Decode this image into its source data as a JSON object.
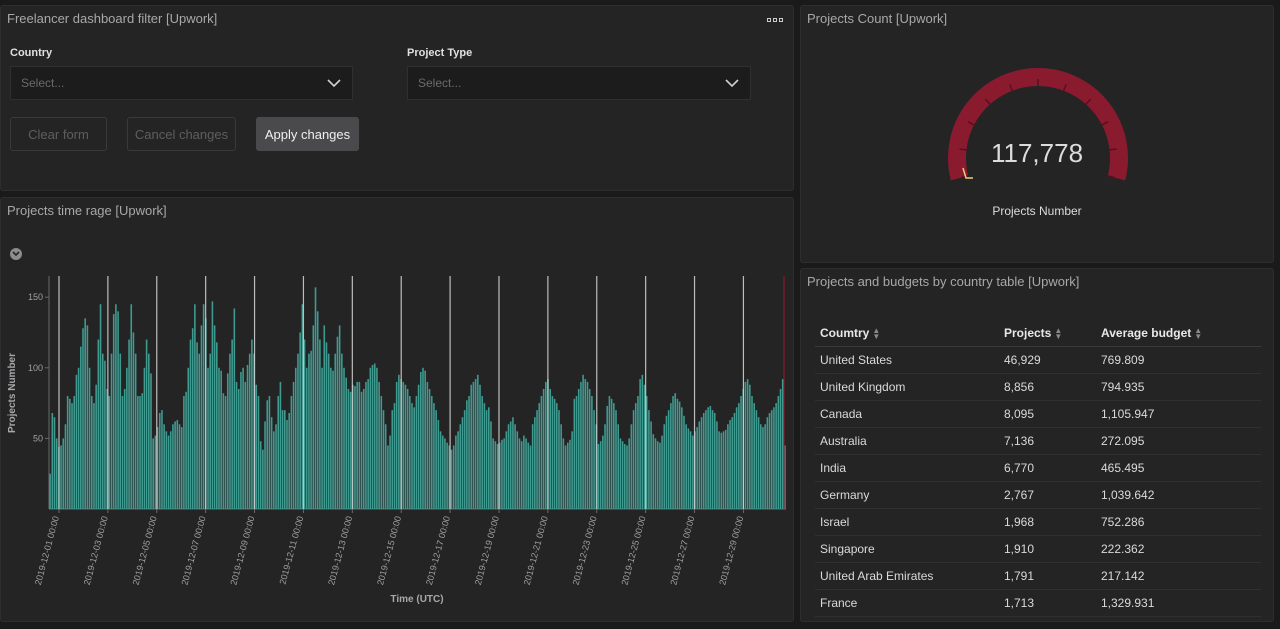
{
  "filter": {
    "title": "Freelancer dashboard filter [Upwork]",
    "country_label": "Country",
    "country_placeholder": "Select...",
    "project_type_label": "Project Type",
    "project_type_placeholder": "Select...",
    "clear_label": "Clear form",
    "cancel_label": "Cancel changes",
    "apply_label": "Apply changes"
  },
  "gauge": {
    "title": "Projects Count [Upwork]",
    "value": "117,778",
    "label": "Projects Number",
    "color": "#8a1a2e"
  },
  "chart_panel": {
    "title": "Projects time rage [Upwork]"
  },
  "table": {
    "title": "Projects and budgets by country table [Upwork]",
    "headers": [
      "Coumtry",
      "Projects",
      "Average budget"
    ],
    "rows": [
      [
        "United States",
        "46,929",
        "769.809"
      ],
      [
        "United Kingdom",
        "8,856",
        "794.935"
      ],
      [
        "Canada",
        "8,095",
        "1,105.947"
      ],
      [
        "Australia",
        "7,136",
        "272.095"
      ],
      [
        "India",
        "6,770",
        "465.495"
      ],
      [
        "Germany",
        "2,767",
        "1,039.642"
      ],
      [
        "Israel",
        "1,968",
        "752.286"
      ],
      [
        "Singapore",
        "1,910",
        "222.362"
      ],
      [
        "United Arab Emirates",
        "1,791",
        "217.142"
      ],
      [
        "France",
        "1,713",
        "1,329.931"
      ]
    ]
  },
  "chart_data": {
    "type": "bar",
    "xlabel": "Time (UTC)",
    "ylabel": "Projects Number",
    "ylim": [
      0,
      160
    ],
    "yticks": [
      50,
      100,
      150
    ],
    "bar_color": "#3f9a90",
    "xticks": [
      "2019-12-01 00:00",
      "2019-12-03 00:00",
      "2019-12-05 00:00",
      "2019-12-07 00:00",
      "2019-12-09 00:00",
      "2019-12-11 00:00",
      "2019-12-13 00:00",
      "2019-12-15 00:00",
      "2019-12-17 00:00",
      "2019-12-19 00:00",
      "2019-12-21 00:00",
      "2019-12-23 00:00",
      "2019-12-25 00:00",
      "2019-12-27 00:00",
      "2019-12-29 00:00"
    ],
    "values": [
      25,
      68,
      65,
      50,
      44,
      45,
      50,
      60,
      80,
      78,
      75,
      80,
      95,
      100,
      115,
      128,
      135,
      130,
      100,
      80,
      75,
      88,
      120,
      145,
      110,
      105,
      85,
      80,
      110,
      138,
      145,
      140,
      110,
      80,
      85,
      100,
      120,
      145,
      125,
      110,
      80,
      80,
      82,
      100,
      120,
      110,
      96,
      50,
      52,
      58,
      68,
      70,
      60,
      55,
      52,
      55,
      60,
      62,
      63,
      60,
      58,
      80,
      83,
      100,
      120,
      128,
      145,
      118,
      110,
      130,
      145,
      135,
      100,
      110,
      147,
      130,
      118,
      100,
      98,
      82,
      80,
      96,
      110,
      120,
      142,
      90,
      85,
      97,
      100,
      90,
      102,
      110,
      120,
      110,
      88,
      80,
      48,
      42,
      62,
      77,
      80,
      65,
      55,
      60,
      80,
      90,
      70,
      70,
      63,
      68,
      80,
      90,
      100,
      110,
      125,
      145,
      120,
      100,
      110,
      112,
      130,
      157,
      140,
      120,
      100,
      130,
      118,
      110,
      100,
      98,
      110,
      122,
      130,
      110,
      100,
      93,
      85,
      83,
      88,
      87,
      90,
      90,
      83,
      85,
      90,
      92,
      100,
      102,
      103,
      100,
      90,
      80,
      70,
      60,
      45,
      52,
      70,
      75,
      90,
      95,
      92,
      90,
      88,
      85,
      80,
      75,
      72,
      80,
      88,
      97,
      100,
      98,
      90,
      85,
      80,
      75,
      70,
      63,
      55,
      52,
      50,
      47,
      45,
      42,
      45,
      52,
      55,
      60,
      65,
      70,
      77,
      80,
      88,
      90,
      92,
      95,
      88,
      80,
      75,
      70,
      72,
      62,
      50,
      48,
      46,
      47,
      49,
      50,
      55,
      60,
      62,
      65,
      60,
      55,
      50,
      48,
      52,
      50,
      47,
      45,
      60,
      65,
      70,
      75,
      80,
      85,
      90,
      92,
      85,
      80,
      78,
      75,
      70,
      60,
      50,
      45,
      47,
      49,
      55,
      78,
      80,
      85,
      90,
      95,
      92,
      90,
      85,
      80,
      70,
      60,
      46,
      48,
      52,
      60,
      73,
      80,
      78,
      75,
      70,
      60,
      50,
      48,
      46,
      45,
      50,
      60,
      70,
      75,
      80,
      92,
      95,
      88,
      80,
      70,
      62,
      53,
      50,
      48,
      47,
      52,
      60,
      66,
      70,
      75,
      80,
      82,
      78,
      76,
      72,
      66,
      60,
      57,
      55,
      52,
      55,
      58,
      62,
      65,
      68,
      70,
      72,
      73,
      70,
      68,
      62,
      55,
      54,
      55,
      56,
      60,
      63,
      65,
      68,
      72,
      75,
      80,
      85,
      90,
      92,
      88,
      80,
      75,
      70,
      65,
      60,
      58,
      60,
      65,
      68,
      70,
      72,
      75,
      80,
      85,
      92,
      45
    ]
  }
}
